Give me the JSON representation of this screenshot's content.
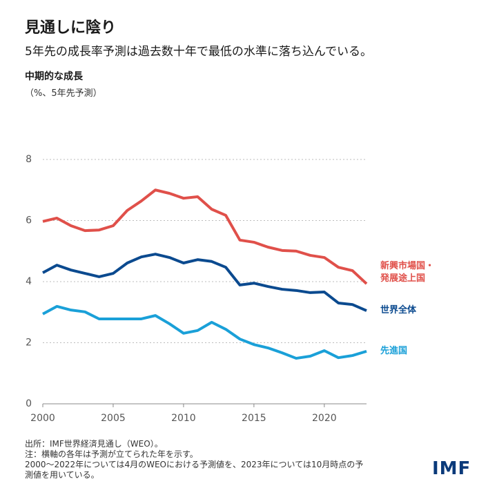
{
  "chart_data": {
    "type": "line",
    "title": "見通しに陰り",
    "subtitle": "5年先の成長率予測は過去数十年で最低の水準に落ち込んでいる。",
    "y_label": "中期的な成長",
    "y_unit": "（%、5年先予測）",
    "x": [
      2000,
      2001,
      2002,
      2003,
      2004,
      2005,
      2006,
      2007,
      2008,
      2009,
      2010,
      2011,
      2012,
      2013,
      2014,
      2015,
      2016,
      2017,
      2018,
      2019,
      2020,
      2021,
      2022,
      2023
    ],
    "series": [
      {
        "name": "新興市場国・発展途上国",
        "color": "#e0504a",
        "values": [
          5.97,
          6.08,
          5.83,
          5.67,
          5.69,
          5.83,
          6.33,
          6.64,
          7.0,
          6.89,
          6.73,
          6.78,
          6.37,
          6.17,
          5.36,
          5.29,
          5.13,
          5.02,
          5.0,
          4.86,
          4.79,
          4.47,
          4.36,
          3.93
        ]
      },
      {
        "name": "世界全体",
        "color": "#0b4a8f",
        "values": [
          4.29,
          4.54,
          4.38,
          4.27,
          4.16,
          4.27,
          4.61,
          4.81,
          4.9,
          4.79,
          4.61,
          4.72,
          4.66,
          4.47,
          3.89,
          3.95,
          3.84,
          3.75,
          3.71,
          3.64,
          3.66,
          3.3,
          3.25,
          3.05
        ]
      },
      {
        "name": "先進国",
        "color": "#1aa0d8",
        "values": [
          2.94,
          3.19,
          3.07,
          3.01,
          2.78,
          2.78,
          2.78,
          2.78,
          2.89,
          2.62,
          2.31,
          2.4,
          2.67,
          2.44,
          2.12,
          1.94,
          1.83,
          1.67,
          1.49,
          1.56,
          1.74,
          1.51,
          1.58,
          1.72
        ]
      }
    ],
    "xlim": [
      2000,
      2023
    ],
    "xticks": [
      2000,
      2005,
      2010,
      2015,
      2020
    ],
    "ylim": [
      0,
      8
    ],
    "yticks": [
      0,
      2,
      4,
      6,
      8
    ],
    "grid": true,
    "notes": [
      "出所：IMF世界経済見通し（WEO）。",
      "注：横軸の各年は予測が立てられた年を示す。",
      "2000〜2022年については4月のWEOにおける予測値を、2023年については10月時点の予測値を用いている。"
    ],
    "logo": "IMF"
  }
}
